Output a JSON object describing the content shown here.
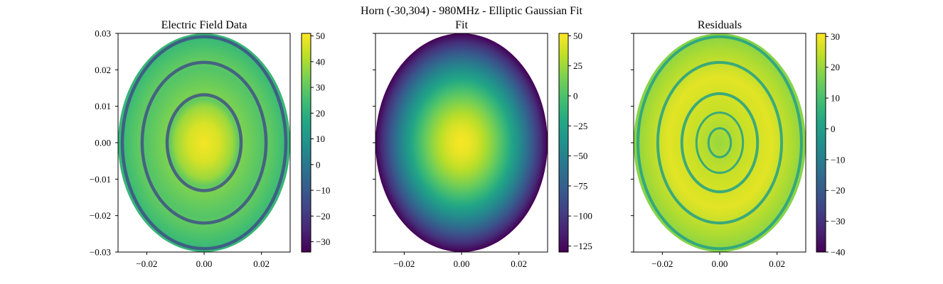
{
  "suptitle": "Horn (-30,304) - 980MHz  - Elliptic Gaussian Fit",
  "chart_data": [
    {
      "type": "heatmap",
      "title": "Electric Field Data",
      "xlim": [
        -0.03,
        0.03
      ],
      "ylim": [
        -0.03,
        0.03
      ],
      "xticks": [
        "−0.02",
        "0.00",
        "0.02"
      ],
      "yticks": [
        "0.03",
        "0.02",
        "0.01",
        "0.00",
        "−0.01",
        "−0.02",
        "−0.03"
      ],
      "show_yticklabels": true,
      "colorbar": {
        "min": -34,
        "max": 51,
        "ticks": [
          50,
          40,
          30,
          20,
          10,
          0,
          -10,
          -20,
          -30
        ],
        "labels": [
          "50",
          "40",
          "30",
          "20",
          "10",
          "0",
          "−10",
          "−20",
          "−30"
        ]
      },
      "field": {
        "kind": "rings",
        "peak": 50,
        "ring_radii": [
          0.43,
          0.72,
          0.95
        ],
        "ring_value": -15,
        "background": 22
      }
    },
    {
      "type": "heatmap",
      "title": "Fit",
      "xlim": [
        -0.03,
        0.03
      ],
      "ylim": [
        -0.03,
        0.03
      ],
      "xticks": [
        "−0.02",
        "0.00",
        "0.02"
      ],
      "yticks": [
        "0.03",
        "0.02",
        "0.01",
        "0.00",
        "−0.01",
        "−0.02",
        "−0.03"
      ],
      "show_yticklabels": false,
      "colorbar": {
        "min": -130,
        "max": 52,
        "ticks": [
          50,
          25,
          0,
          -25,
          -50,
          -75,
          -100,
          -125
        ],
        "labels": [
          "50",
          "25",
          "0",
          "−25",
          "−50",
          "−75",
          "−100",
          "−125"
        ]
      },
      "field": {
        "kind": "gaussian",
        "peak": 50,
        "edge": -130
      }
    },
    {
      "type": "heatmap",
      "title": "Residuals",
      "xlim": [
        -0.03,
        0.03
      ],
      "ylim": [
        -0.03,
        0.03
      ],
      "xticks": [
        "−0.02",
        "0.00",
        "0.02"
      ],
      "yticks": [
        "0.03",
        "0.02",
        "0.01",
        "0.00",
        "−0.01",
        "−0.02",
        "−0.03"
      ],
      "show_yticklabels": false,
      "colorbar": {
        "min": -40,
        "max": 31,
        "ticks": [
          30,
          20,
          10,
          0,
          -10,
          -20,
          -30,
          -40
        ],
        "labels": [
          "30",
          "20",
          "10",
          "0",
          "−10",
          "−20",
          "−30",
          "−40"
        ]
      },
      "field": {
        "kind": "residual_rings",
        "level": 25,
        "ring_radii": [
          0.13,
          0.27,
          0.44,
          0.72,
          0.95
        ],
        "ring_value": 0,
        "edge_value": 18
      }
    }
  ]
}
